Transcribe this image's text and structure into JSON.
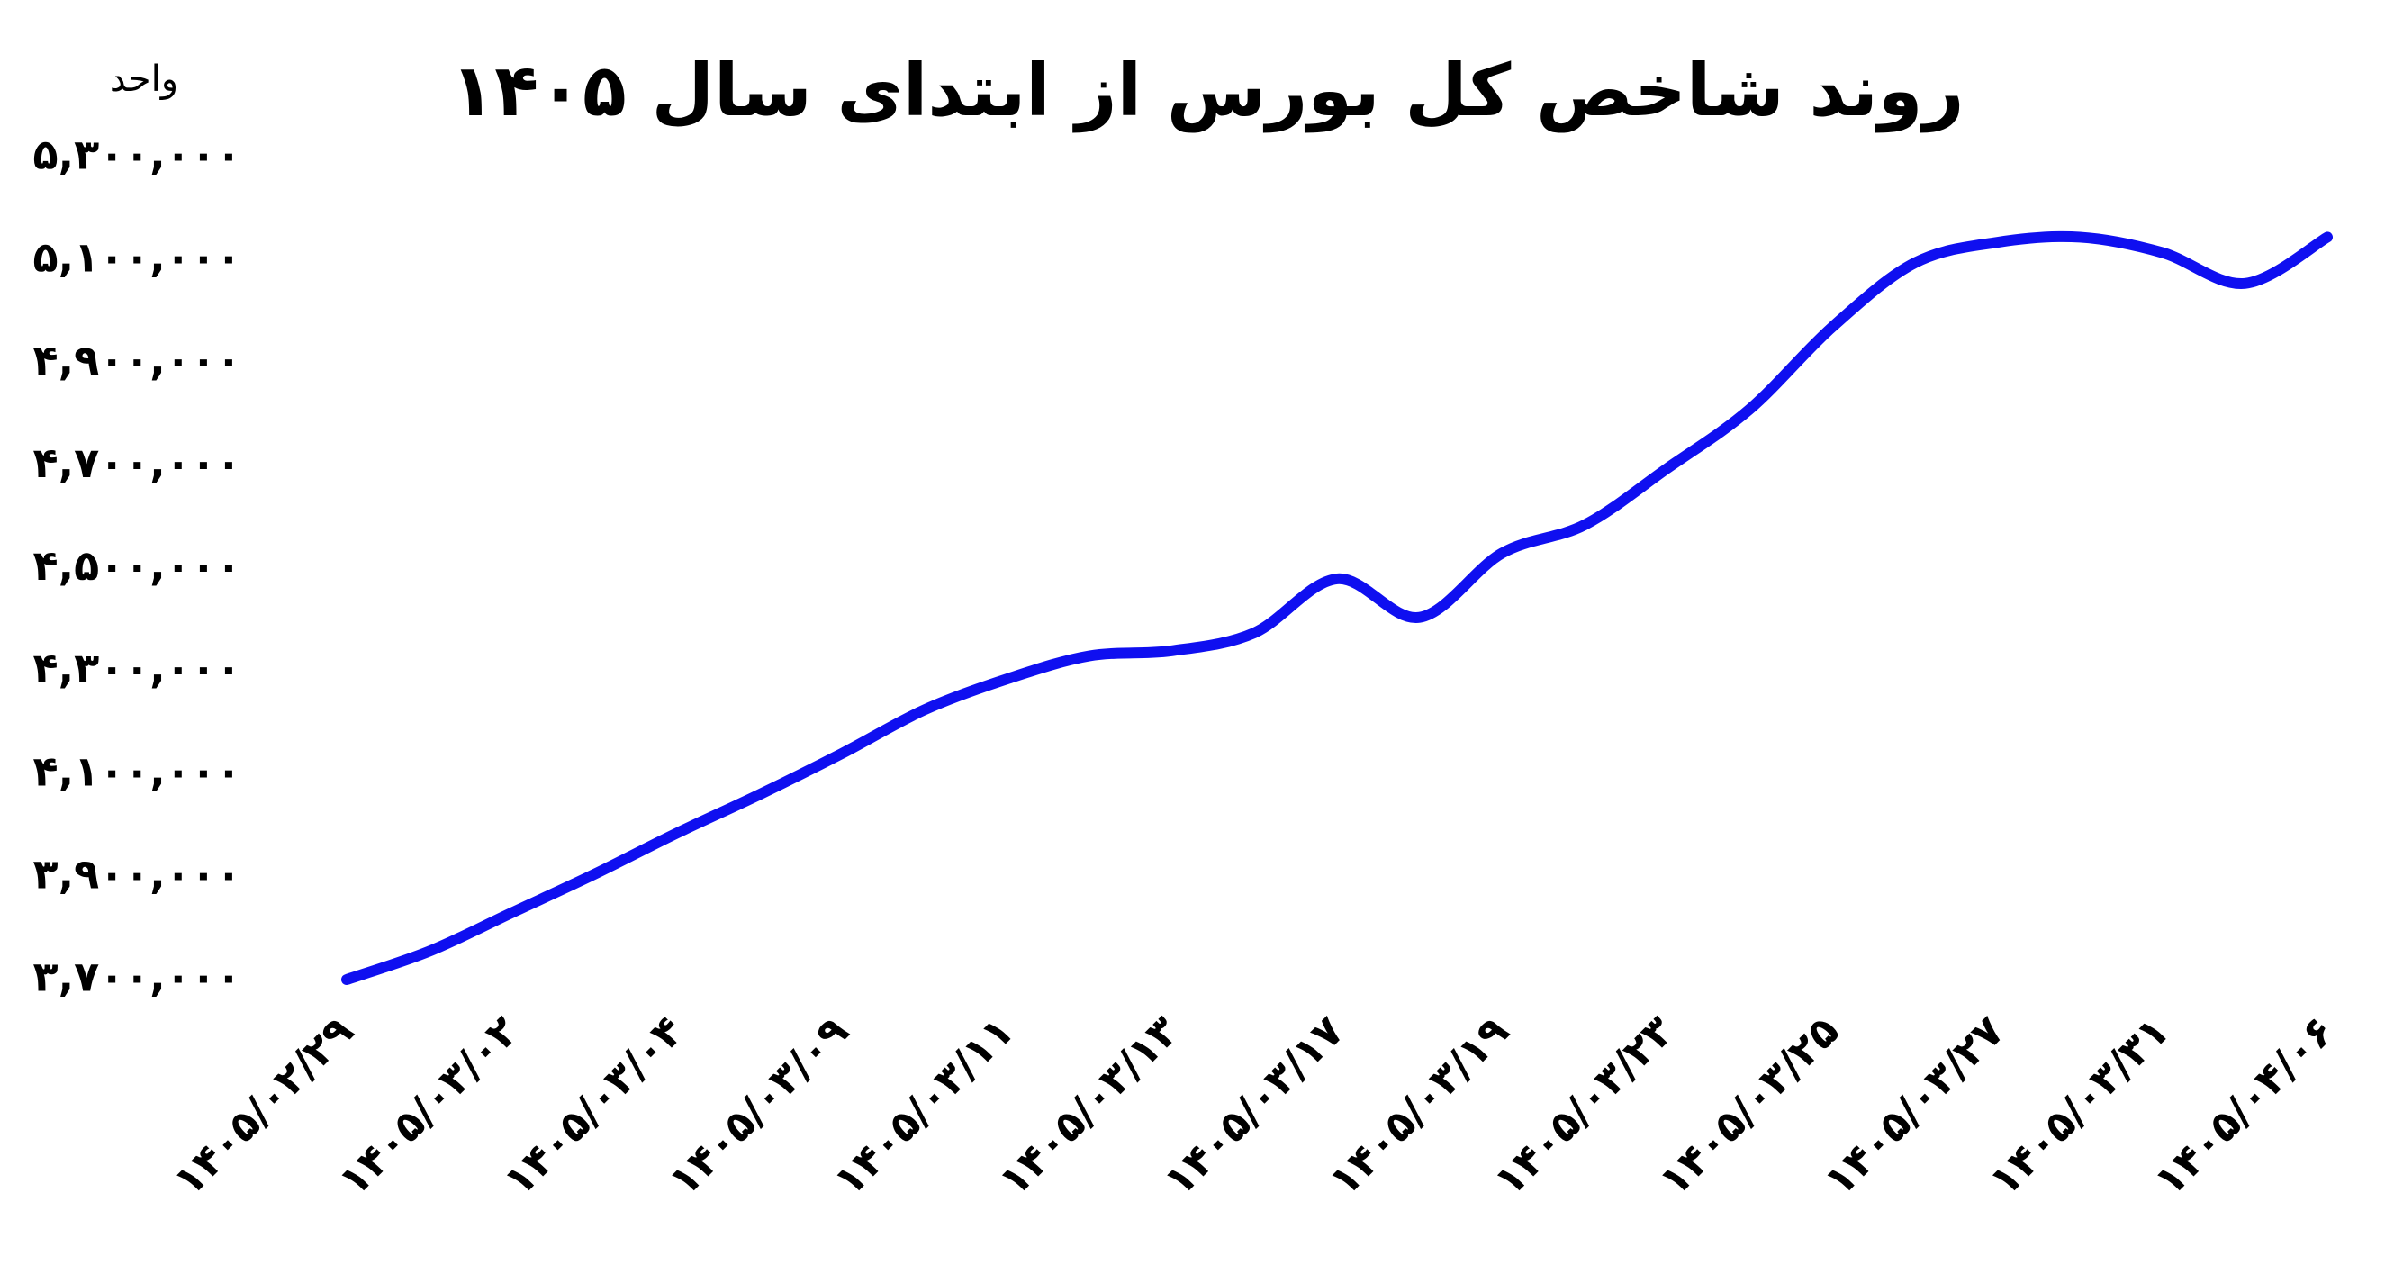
{
  "chart_data": {
    "type": "line",
    "title": "روند شاخص کل بورس از ابتدای سال ۱۴۰۵",
    "y_label": "واحد",
    "categories": [
      "۱۴۰۵/۰۲/۲۹",
      null,
      "۱۴۰۵/۰۳/۰۲",
      null,
      "۱۴۰۵/۰۳/۰۴",
      null,
      "۱۴۰۵/۰۳/۰۹",
      null,
      "۱۴۰۵/۰۳/۱۱",
      null,
      "۱۴۰۵/۰۳/۱۳",
      null,
      "۱۴۰۵/۰۳/۱۷",
      null,
      "۱۴۰۵/۰۳/۱۹",
      null,
      "۱۴۰۵/۰۳/۲۳",
      null,
      "۱۴۰۵/۰۳/۲۵",
      null,
      "۱۴۰۵/۰۳/۲۷",
      null,
      "۱۴۰۵/۰۳/۳۱",
      null,
      "۱۴۰۵/۰۴/۰۶"
    ],
    "values": [
      3700000,
      3755000,
      3830000,
      3905000,
      3985000,
      4060000,
      4140000,
      4225000,
      4285000,
      4330000,
      4340000,
      4375000,
      4480000,
      4405000,
      4530000,
      4585000,
      4695000,
      4810000,
      4970000,
      5095000,
      5135000,
      5145000,
      5115000,
      5055000,
      5145000
    ],
    "color": "#0f0ff0",
    "ylim": [
      3700000,
      5300000
    ],
    "yticks": [
      {
        "value": 3700000,
        "label": "۳,۷۰۰,۰۰۰"
      },
      {
        "value": 3900000,
        "label": "۳,۹۰۰,۰۰۰"
      },
      {
        "value": 4100000,
        "label": "۴,۱۰۰,۰۰۰"
      },
      {
        "value": 4300000,
        "label": "۴,۳۰۰,۰۰۰"
      },
      {
        "value": 4500000,
        "label": "۴,۵۰۰,۰۰۰"
      },
      {
        "value": 4700000,
        "label": "۴,۷۰۰,۰۰۰"
      },
      {
        "value": 4900000,
        "label": "۴,۹۰۰,۰۰۰"
      },
      {
        "value": 5100000,
        "label": "۵,۱۰۰,۰۰۰"
      },
      {
        "value": 5300000,
        "label": "۵,۳۰۰,۰۰۰"
      }
    ],
    "grid": false
  }
}
